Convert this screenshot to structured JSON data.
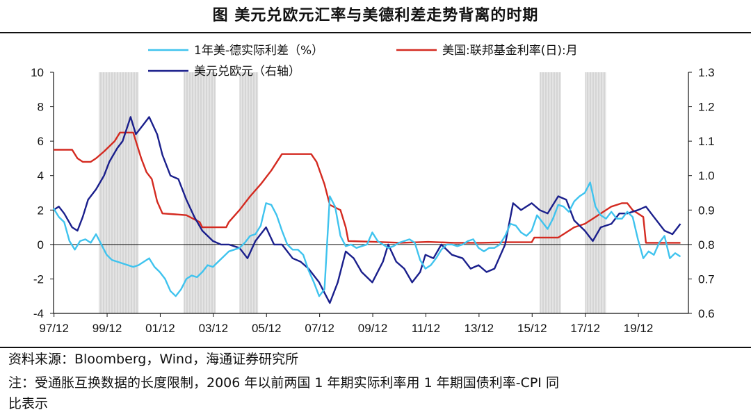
{
  "title": "图  美元兑欧元汇率与美德利差走势背离的时期",
  "source": "资料来源：Bloomberg，Wind，海通证券研究所",
  "note_line1": "注：受通胀互换数据的长度限制，2006 年以前两国 1 年期实际利率用 1 年期国债利率-CPI 同",
  "note_line2": "比表示",
  "colors": {
    "spread": "#3fc3ee",
    "fedfunds": "#d42a20",
    "eurusd": "#1a1f8c",
    "shade": "#cfcfcf"
  },
  "chart_data": {
    "type": "line",
    "x_tick_labels": [
      "97/12",
      "99/12",
      "01/12",
      "03/12",
      "05/12",
      "07/12",
      "09/12",
      "11/12",
      "13/12",
      "15/12",
      "17/12",
      "19/12"
    ],
    "x_range": [
      1997.9,
      2021.8
    ],
    "ylim_left": [
      -4,
      10
    ],
    "yticks_left": [
      -4,
      -2,
      0,
      2,
      4,
      6,
      8,
      10
    ],
    "ylim_right": [
      0.6,
      1.3
    ],
    "yticks_right": [
      "0.6",
      "0.7",
      "0.8",
      "0.9",
      "1.0",
      "1.1",
      "1.2",
      "1.3"
    ],
    "legend": [
      {
        "name": "1年美-德实际利差（%）",
        "key": "spread"
      },
      {
        "name": "美国:联邦基金利率(日):月",
        "key": "fedfunds"
      },
      {
        "name": "美元兑欧元（右轴）",
        "key": "eurusd"
      }
    ],
    "shaded_periods": [
      [
        1999.6,
        2001.1
      ],
      [
        2002.8,
        2004.0
      ],
      [
        2004.9,
        2005.6
      ],
      [
        2016.2,
        2017.0
      ],
      [
        2017.9,
        2018.7
      ]
    ],
    "series": [
      {
        "key": "spread",
        "axis": "left",
        "x": [
          1997.9,
          1998.1,
          1998.3,
          1998.5,
          1998.7,
          1998.9,
          1999.1,
          1999.3,
          1999.5,
          1999.7,
          1999.9,
          2000.1,
          2000.3,
          2000.5,
          2000.7,
          2000.9,
          2001.1,
          2001.3,
          2001.5,
          2001.7,
          2001.9,
          2002.1,
          2002.3,
          2002.5,
          2002.7,
          2002.9,
          2003.1,
          2003.3,
          2003.5,
          2003.7,
          2003.9,
          2004.1,
          2004.3,
          2004.5,
          2004.7,
          2004.9,
          2005.1,
          2005.3,
          2005.5,
          2005.7,
          2005.9,
          2006.1,
          2006.3,
          2006.5,
          2006.7,
          2006.9,
          2007.1,
          2007.3,
          2007.5,
          2007.7,
          2007.9,
          2008.1,
          2008.3,
          2008.5,
          2008.7,
          2008.9,
          2009.1,
          2009.3,
          2009.5,
          2009.7,
          2009.9,
          2010.1,
          2010.3,
          2010.5,
          2010.7,
          2010.9,
          2011.1,
          2011.3,
          2011.5,
          2011.7,
          2011.9,
          2012.1,
          2012.3,
          2012.5,
          2012.7,
          2012.9,
          2013.1,
          2013.3,
          2013.5,
          2013.7,
          2013.9,
          2014.1,
          2014.3,
          2014.5,
          2014.7,
          2014.9,
          2015.1,
          2015.3,
          2015.5,
          2015.7,
          2015.9,
          2016.1,
          2016.3,
          2016.5,
          2016.7,
          2016.9,
          2017.1,
          2017.3,
          2017.5,
          2017.7,
          2017.9,
          2018.1,
          2018.3,
          2018.5,
          2018.7,
          2018.9,
          2019.1,
          2019.3,
          2019.5,
          2019.7,
          2019.9,
          2020.1,
          2020.3,
          2020.5,
          2020.7,
          2020.9,
          2021.1,
          2021.3,
          2021.5
        ],
        "y": [
          2.1,
          1.6,
          1.3,
          0.2,
          -0.3,
          0.2,
          0.3,
          0.1,
          0.6,
          0.0,
          -0.6,
          -0.9,
          -1.0,
          -1.1,
          -1.2,
          -1.3,
          -1.2,
          -1.0,
          -0.8,
          -1.3,
          -1.6,
          -2.0,
          -2.7,
          -3.0,
          -2.6,
          -2.0,
          -1.8,
          -1.9,
          -1.6,
          -1.2,
          -1.3,
          -1.0,
          -0.7,
          -0.4,
          -0.3,
          -0.2,
          0.1,
          0.5,
          0.6,
          1.1,
          2.4,
          2.3,
          1.7,
          0.8,
          0.0,
          -0.3,
          -0.3,
          -0.6,
          -1.5,
          -2.2,
          -3.0,
          -2.6,
          2.8,
          2.2,
          0.5,
          -0.1,
          0.0,
          -0.2,
          -0.1,
          0.0,
          0.7,
          0.2,
          0.0,
          -0.2,
          -0.1,
          0.1,
          0.2,
          0.3,
          0.1,
          -0.9,
          -1.4,
          -1.2,
          -0.8,
          -0.3,
          0.0,
          0.0,
          -0.1,
          0.0,
          0.2,
          0.3,
          -0.2,
          -0.4,
          -0.2,
          -0.2,
          0.0,
          0.5,
          1.2,
          1.1,
          0.7,
          0.5,
          0.8,
          1.7,
          1.3,
          0.9,
          1.5,
          2.3,
          2.2,
          1.9,
          2.5,
          2.8,
          3.0,
          3.6,
          2.2,
          1.7,
          1.5,
          1.9,
          1.5,
          1.5,
          1.9,
          1.6,
          0.3,
          -0.8,
          -0.4,
          -0.6,
          0.1,
          0.5,
          -0.8,
          -0.5,
          -0.7
        ]
      },
      {
        "key": "fedfunds",
        "axis": "left",
        "x": [
          1997.9,
          1998.6,
          1998.8,
          1999.0,
          1999.3,
          1999.5,
          1999.8,
          2000.2,
          2000.4,
          2000.9,
          2001.0,
          2001.2,
          2001.4,
          2001.6,
          2001.8,
          2002.0,
          2002.5,
          2002.9,
          2003.4,
          2003.5,
          2004.4,
          2004.5,
          2004.9,
          2005.3,
          2005.7,
          2006.1,
          2006.5,
          2007.6,
          2007.8,
          2008.1,
          2008.3,
          2008.7,
          2008.9,
          2009.0,
          2010.0,
          2011.0,
          2012.0,
          2013.0,
          2014.0,
          2015.0,
          2015.9,
          2016.0,
          2016.9,
          2017.2,
          2017.5,
          2017.9,
          2018.2,
          2018.5,
          2018.9,
          2019.3,
          2019.5,
          2019.7,
          2019.9,
          2020.1,
          2020.2,
          2021.5
        ],
        "y": [
          5.5,
          5.5,
          5.0,
          4.8,
          4.8,
          5.0,
          5.4,
          6.0,
          6.5,
          6.5,
          6.0,
          5.0,
          4.2,
          3.8,
          2.5,
          1.8,
          1.75,
          1.7,
          1.3,
          1.0,
          1.0,
          1.3,
          2.0,
          2.8,
          3.5,
          4.3,
          5.25,
          5.25,
          4.8,
          3.5,
          2.3,
          2.0,
          1.0,
          0.2,
          0.15,
          0.1,
          0.15,
          0.1,
          0.1,
          0.13,
          0.13,
          0.4,
          0.4,
          0.7,
          1.0,
          1.2,
          1.5,
          1.8,
          2.2,
          2.4,
          2.4,
          2.0,
          1.8,
          1.6,
          0.1,
          0.1
        ]
      },
      {
        "key": "eurusd",
        "axis": "right",
        "x": [
          1997.9,
          1998.1,
          1998.3,
          1998.6,
          1998.8,
          1999.0,
          1999.2,
          1999.5,
          1999.8,
          2000.0,
          2000.3,
          2000.5,
          2000.8,
          2001.0,
          2001.3,
          2001.5,
          2001.8,
          2002.0,
          2002.3,
          2002.6,
          2002.9,
          2003.2,
          2003.5,
          2003.9,
          2004.2,
          2004.5,
          2004.9,
          2005.2,
          2005.5,
          2005.9,
          2006.2,
          2006.5,
          2006.9,
          2007.2,
          2007.5,
          2007.9,
          2008.1,
          2008.3,
          2008.6,
          2008.9,
          2009.2,
          2009.5,
          2009.9,
          2010.3,
          2010.5,
          2010.8,
          2011.1,
          2011.4,
          2011.7,
          2011.9,
          2012.2,
          2012.5,
          2012.9,
          2013.3,
          2013.6,
          2013.9,
          2014.2,
          2014.5,
          2014.9,
          2015.2,
          2015.5,
          2015.9,
          2016.2,
          2016.5,
          2016.9,
          2017.2,
          2017.5,
          2017.9,
          2018.2,
          2018.5,
          2018.9,
          2019.2,
          2019.5,
          2019.9,
          2020.2,
          2020.5,
          2020.9,
          2021.2,
          2021.5
        ],
        "y": [
          0.9,
          0.91,
          0.89,
          0.85,
          0.84,
          0.88,
          0.93,
          0.96,
          1.0,
          1.04,
          1.08,
          1.1,
          1.17,
          1.12,
          1.15,
          1.17,
          1.12,
          1.06,
          1.0,
          0.99,
          0.93,
          0.88,
          0.84,
          0.81,
          0.8,
          0.8,
          0.79,
          0.76,
          0.81,
          0.85,
          0.8,
          0.8,
          0.76,
          0.75,
          0.73,
          0.69,
          0.66,
          0.63,
          0.69,
          0.78,
          0.76,
          0.72,
          0.69,
          0.75,
          0.8,
          0.75,
          0.73,
          0.69,
          0.72,
          0.77,
          0.76,
          0.8,
          0.77,
          0.76,
          0.73,
          0.74,
          0.72,
          0.73,
          0.8,
          0.92,
          0.9,
          0.92,
          0.9,
          0.89,
          0.94,
          0.93,
          0.87,
          0.84,
          0.81,
          0.85,
          0.86,
          0.89,
          0.89,
          0.9,
          0.91,
          0.88,
          0.84,
          0.83,
          0.86
        ]
      }
    ]
  }
}
